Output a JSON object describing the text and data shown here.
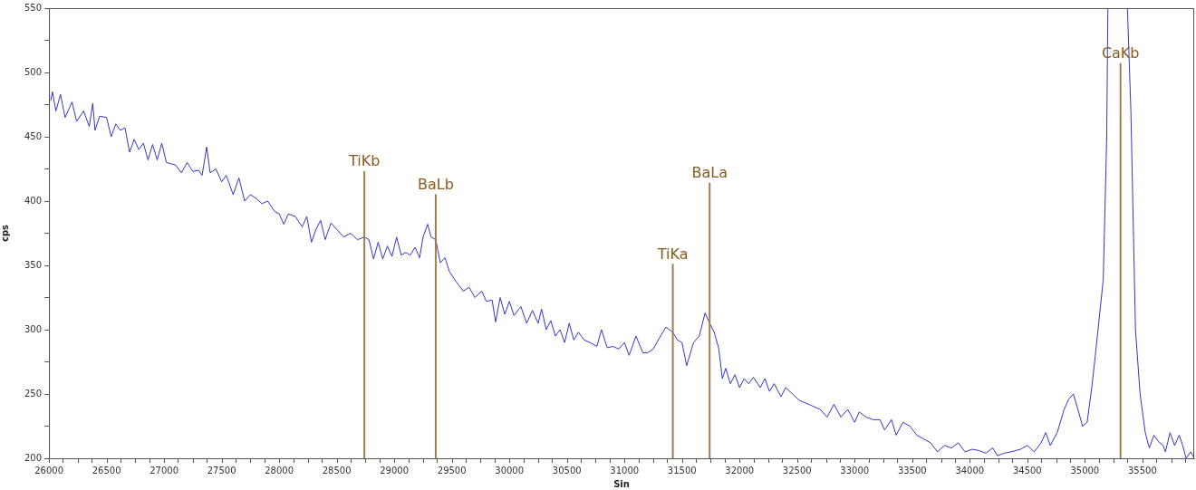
{
  "chart_data": {
    "type": "line",
    "xlabel": "Sin",
    "ylabel": "cps",
    "legend": false,
    "grid": false,
    "marker": "none",
    "line_style": "solid",
    "xlim": [
      26000,
      35950
    ],
    "ylim": [
      200,
      550
    ],
    "xticks": [
      26000,
      {
        "value": 26250,
        "label": null
      },
      26500,
      {
        "value": 26750,
        "label": null
      },
      27000,
      {
        "value": 27250,
        "label": null
      },
      27500,
      {
        "value": 27750,
        "label": null
      },
      28000,
      {
        "value": 28250,
        "label": null
      },
      28500,
      {
        "value": 28750,
        "label": null
      },
      29000,
      {
        "value": 29250,
        "label": null
      },
      29500,
      {
        "value": 29750,
        "label": null
      },
      30000,
      {
        "value": 30250,
        "label": null
      },
      30500,
      {
        "value": 30750,
        "label": null
      },
      31000,
      {
        "value": 31250,
        "label": null
      },
      31500,
      {
        "value": 31750,
        "label": null
      },
      32000,
      {
        "value": 32250,
        "label": null
      },
      32500,
      {
        "value": 32750,
        "label": null
      },
      33000,
      {
        "value": 33250,
        "label": null
      },
      33500,
      {
        "value": 33750,
        "label": null
      },
      34000,
      {
        "value": 34250,
        "label": null
      },
      34500,
      {
        "value": 34750,
        "label": null
      },
      35000,
      {
        "value": 35250,
        "label": null
      },
      35500,
      {
        "value": 35750,
        "label": null
      }
    ],
    "yticks": [
      200,
      {
        "value": 225,
        "label": null
      },
      250,
      {
        "value": 275,
        "label": null
      },
      300,
      {
        "value": 325,
        "label": null
      },
      350,
      {
        "value": 375,
        "label": null
      },
      400,
      {
        "value": 425,
        "label": null
      },
      450,
      {
        "value": 475,
        "label": null
      },
      500,
      {
        "value": 525,
        "label": null
      },
      550
    ],
    "series": [
      {
        "type": "bar",
        "color": "#a27a48",
        "x": [
          28740,
          29360,
          31420,
          31740,
          35310
        ],
        "values": [
          423,
          405,
          351,
          414,
          507
        ],
        "value_labels": [
          "TiKb",
          "BaLb",
          "TiKa",
          "BaLa",
          "CaKb"
        ]
      },
      {
        "color": "#3535c8",
        "x": [
          26015,
          26030,
          26060,
          26100,
          26140,
          26200,
          26240,
          26300,
          26350,
          26380,
          26400,
          26440,
          26500,
          26540,
          26580,
          26620,
          26660,
          26700,
          26740,
          26780,
          26820,
          26860,
          26900,
          26940,
          26980,
          27020,
          27100,
          27150,
          27200,
          27250,
          27300,
          27330,
          27370,
          27400,
          27450,
          27500,
          27540,
          27600,
          27650,
          27700,
          27750,
          27800,
          27850,
          27900,
          27960,
          28000,
          28040,
          28080,
          28140,
          28200,
          28240,
          28280,
          28320,
          28360,
          28400,
          28450,
          28500,
          28560,
          28620,
          28680,
          28740,
          28780,
          28820,
          28860,
          28900,
          28940,
          28980,
          29020,
          29060,
          29100,
          29140,
          29180,
          29220,
          29250,
          29290,
          29320,
          29360,
          29400,
          29440,
          29480,
          29540,
          29600,
          29650,
          29700,
          29760,
          29800,
          29850,
          29880,
          29920,
          29960,
          30000,
          30040,
          30100,
          30150,
          30200,
          30250,
          30280,
          30320,
          30360,
          30400,
          30440,
          30480,
          30520,
          30560,
          30600,
          30650,
          30700,
          30760,
          30800,
          30850,
          30900,
          30950,
          31000,
          31040,
          31100,
          31160,
          31200,
          31250,
          31300,
          31360,
          31420,
          31460,
          31500,
          31540,
          31600,
          31650,
          31700,
          31740,
          31780,
          31820,
          31850,
          31880,
          31920,
          31960,
          32000,
          32040,
          32080,
          32120,
          32180,
          32220,
          32260,
          32300,
          32360,
          32400,
          32460,
          32520,
          32600,
          32700,
          32760,
          32820,
          32880,
          32940,
          33000,
          33040,
          33100,
          33160,
          33220,
          33260,
          33320,
          33360,
          33420,
          33480,
          33540,
          33600,
          33660,
          33720,
          33780,
          33840,
          33900,
          33960,
          34020,
          34080,
          34140,
          34200,
          34240,
          34300,
          34360,
          34440,
          34500,
          34560,
          34620,
          34660,
          34700,
          34760,
          34820,
          34860,
          34900,
          34940,
          34980,
          35020,
          35060,
          35090,
          35160,
          35190,
          35200,
          35290,
          35370,
          35400,
          35440,
          35480,
          35525,
          35560,
          35600,
          35640,
          35680,
          35700,
          35740,
          35780,
          35820,
          35850,
          35880,
          35920,
          35950
        ],
        "values": [
          478,
          485,
          470,
          483,
          465,
          477,
          462,
          470,
          458,
          476,
          455,
          466,
          465,
          450,
          460,
          455,
          457,
          438,
          448,
          440,
          445,
          432,
          444,
          432,
          445,
          430,
          428,
          422,
          430,
          423,
          424,
          420,
          442,
          422,
          425,
          415,
          420,
          405,
          418,
          400,
          405,
          402,
          398,
          400,
          392,
          390,
          382,
          390,
          388,
          380,
          388,
          368,
          378,
          385,
          370,
          383,
          378,
          372,
          375,
          370,
          372,
          370,
          355,
          368,
          355,
          365,
          357,
          372,
          358,
          360,
          358,
          364,
          356,
          372,
          382,
          372,
          370,
          352,
          356,
          345,
          337,
          330,
          333,
          325,
          330,
          322,
          323,
          306,
          325,
          312,
          322,
          311,
          318,
          305,
          315,
          305,
          316,
          300,
          307,
          295,
          300,
          290,
          305,
          292,
          298,
          292,
          290,
          287,
          300,
          286,
          287,
          285,
          290,
          280,
          295,
          282,
          282,
          285,
          293,
          302,
          298,
          292,
          290,
          272,
          290,
          295,
          313,
          305,
          298,
          285,
          262,
          270,
          258,
          265,
          255,
          262,
          258,
          263,
          255,
          262,
          252,
          258,
          248,
          255,
          250,
          245,
          242,
          238,
          232,
          242,
          232,
          238,
          228,
          236,
          232,
          230,
          230,
          222,
          230,
          218,
          228,
          225,
          218,
          215,
          212,
          205,
          210,
          208,
          212,
          205,
          207,
          206,
          204,
          208,
          202,
          204,
          205,
          207,
          210,
          205,
          212,
          220,
          210,
          220,
          238,
          246,
          250,
          238,
          225,
          228,
          255,
          279,
          339,
          450,
          550,
          null,
          550,
          470,
          300,
          250,
          220,
          208,
          218,
          213,
          210,
          205,
          220,
          210,
          218,
          210,
          200,
          205,
          200
        ]
      }
    ]
  }
}
